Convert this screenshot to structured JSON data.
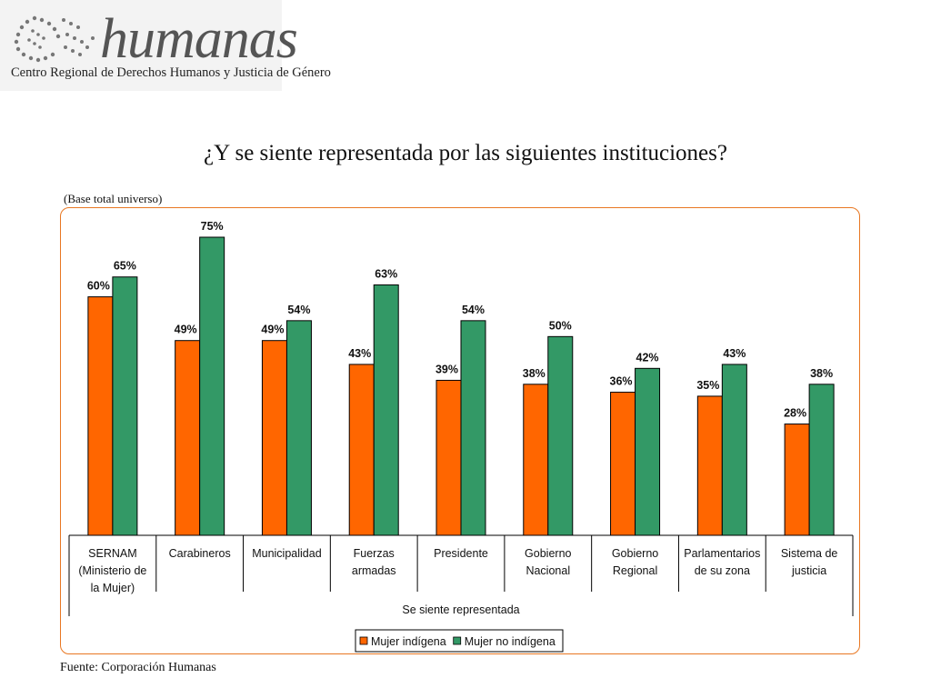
{
  "logo": {
    "name": "humanas",
    "subtitle": "Centro Regional de Derechos Humanos y Justicia de Género"
  },
  "title": "¿Y se siente representada por las siguientes instituciones?",
  "base_note": "(Base total universo)",
  "source": "Fuente: Corporación Humanas",
  "colors": {
    "frame": "#e87722",
    "series1": "#ff6600",
    "series2": "#339966"
  },
  "chart_data": {
    "type": "bar",
    "categories": [
      [
        "SERNAM",
        "(Ministerio de",
        "la Mujer)"
      ],
      [
        "Carabineros"
      ],
      [
        "Municipalidad"
      ],
      [
        "Fuerzas",
        "armadas"
      ],
      [
        "Presidente"
      ],
      [
        "Gobierno",
        "Nacional"
      ],
      [
        "Gobierno",
        "Regional"
      ],
      [
        "Parlamentarios",
        "de su zona"
      ],
      [
        "Sistema de",
        "justicia"
      ]
    ],
    "series": [
      {
        "name": "Mujer indígena",
        "color": "#ff6600",
        "values": [
          60,
          49,
          49,
          43,
          39,
          38,
          36,
          35,
          28
        ],
        "labels": [
          "60%",
          "49%",
          "49%",
          "43%",
          "39%",
          "38%",
          "36%",
          "35%",
          "28%"
        ]
      },
      {
        "name": "Mujer no indígena",
        "color": "#339966",
        "values": [
          65,
          75,
          54,
          63,
          54,
          50,
          42,
          43,
          38
        ],
        "labels": [
          "65%",
          "75%",
          "54%",
          "63%",
          "54%",
          "50%",
          "42%",
          "43%",
          "38%"
        ]
      }
    ],
    "group_label": "Se siente representada",
    "ylim": [
      0,
      75
    ],
    "legend": "bottom",
    "grid": false
  }
}
